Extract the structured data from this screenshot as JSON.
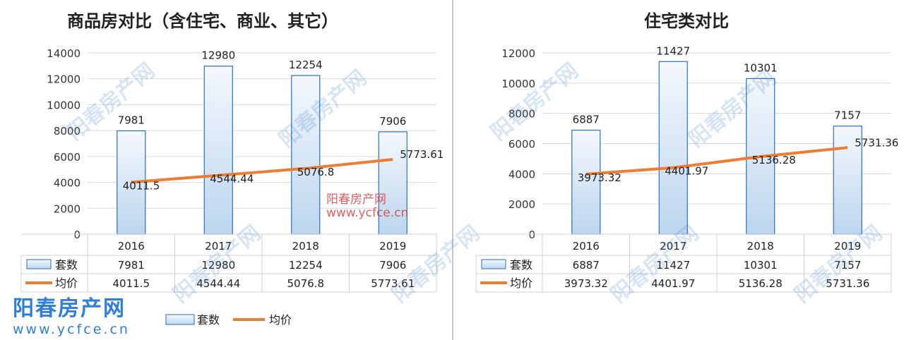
{
  "watermark": {
    "brand": "阳春房产网",
    "url": "www.ycfce.cn"
  },
  "chart_data": [
    {
      "type": "bar+line",
      "title": "商品房对比（含住宅、商业、其它）",
      "categories": [
        "2016",
        "2017",
        "2018",
        "2019"
      ],
      "series": [
        {
          "name": "套数",
          "type": "bar",
          "values": [
            7981,
            12980,
            12254,
            7906
          ],
          "color": "#bcd6ee"
        },
        {
          "name": "均价",
          "type": "line",
          "values": [
            4011.5,
            4544.44,
            5076.8,
            5773.61
          ],
          "color": "#ed7d31"
        }
      ],
      "value_labels": {
        "bar": [
          "7981",
          "12980",
          "12254",
          "7906"
        ],
        "line": [
          "4011.5",
          "4544.44",
          "5076.8",
          "5773.61"
        ]
      },
      "ylim": [
        0,
        14000
      ],
      "yticks": [
        "0",
        "2000",
        "4000",
        "6000",
        "8000",
        "10000",
        "12000",
        "14000"
      ],
      "grid": true,
      "legend": "bottom",
      "data_table": true
    },
    {
      "type": "bar+line",
      "title": "住宅类对比",
      "categories": [
        "2016",
        "2017",
        "2018",
        "2019"
      ],
      "series": [
        {
          "name": "套数",
          "type": "bar",
          "values": [
            6887,
            11427,
            10301,
            7157
          ],
          "color": "#bcd6ee"
        },
        {
          "name": "均价",
          "type": "line",
          "values": [
            3973.32,
            4401.97,
            5136.28,
            5731.36
          ],
          "color": "#ed7d31"
        }
      ],
      "value_labels": {
        "bar": [
          "6887",
          "11427",
          "10301",
          "7157"
        ],
        "line": [
          "3973.32",
          "4401.97",
          "5136.28",
          "5731.36"
        ]
      },
      "ylim": [
        0,
        12000
      ],
      "yticks": [
        "0",
        "2000",
        "4000",
        "6000",
        "8000",
        "10000",
        "12000"
      ],
      "grid": true,
      "legend": "bottom",
      "data_table": true
    }
  ]
}
